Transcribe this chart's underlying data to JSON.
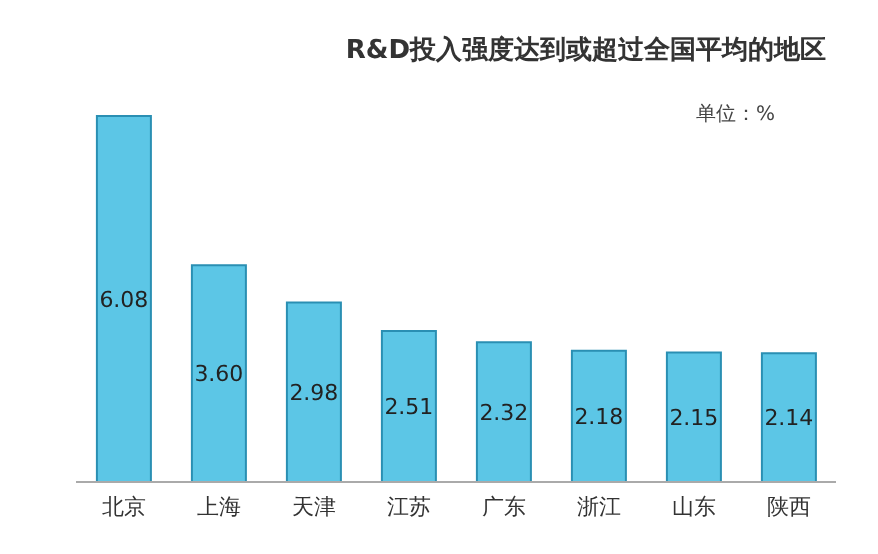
{
  "chart_data": {
    "type": "bar",
    "title": "R&D投入强度达到或超过全国平均的地区",
    "annotations": [
      "单位：%"
    ],
    "categories": [
      "北京",
      "上海",
      "天津",
      "江苏",
      "广东",
      "浙江",
      "山东",
      "陕西"
    ],
    "values": [
      6.08,
      3.6,
      2.98,
      2.51,
      2.32,
      2.18,
      2.15,
      2.14
    ],
    "value_labels": [
      "6.08",
      "3.60",
      "2.98",
      "2.51",
      "2.32",
      "2.18",
      "2.15",
      "2.14"
    ],
    "color": "#5cc6e6"
  }
}
